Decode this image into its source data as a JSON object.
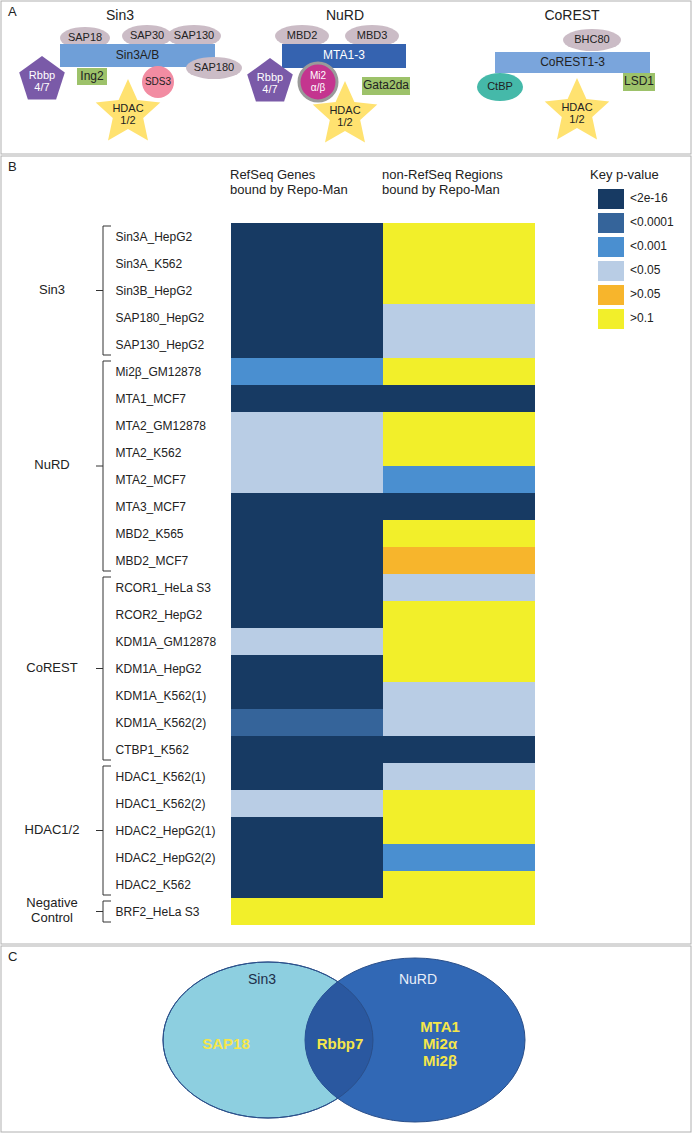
{
  "chart_data": {
    "type": "heatmap",
    "panel_label": "B",
    "columns": [
      "RefSeq Genes\nbound by Repo-Man",
      "non-RefSeq Regions\nbound by Repo-Man"
    ],
    "legend_title": "Key p-value",
    "color_key": [
      {
        "label": "<2e-16",
        "color": "#173a63"
      },
      {
        "label": "<0.0001",
        "color": "#35649a"
      },
      {
        "label": "<0.001",
        "color": "#4a8fd0"
      },
      {
        "label": "<0.05",
        "color": "#b9cde5"
      },
      {
        "label": ">0.05",
        "color": "#f7b52c"
      },
      {
        "label": ">0.1",
        "color": "#f2ef2a"
      }
    ],
    "rows": [
      {
        "label": "Sin3A_HepG2",
        "group": "Sin3",
        "cells": [
          "<2e-16",
          ">0.1"
        ]
      },
      {
        "label": "Sin3A_K562",
        "group": "Sin3",
        "cells": [
          "<2e-16",
          ">0.1"
        ]
      },
      {
        "label": "Sin3B_HepG2",
        "group": "Sin3",
        "cells": [
          "<2e-16",
          ">0.1"
        ]
      },
      {
        "label": "SAP180_HepG2",
        "group": "Sin3",
        "cells": [
          "<2e-16",
          "<0.05"
        ]
      },
      {
        "label": "SAP130_HepG2",
        "group": "Sin3",
        "cells": [
          "<2e-16",
          "<0.05"
        ]
      },
      {
        "label": "Mi2β_GM12878",
        "group": "NuRD",
        "cells": [
          "<0.001",
          ">0.1"
        ]
      },
      {
        "label": "MTA1_MCF7",
        "group": "NuRD",
        "cells": [
          "<2e-16",
          "<2e-16"
        ]
      },
      {
        "label": "MTA2_GM12878",
        "group": "NuRD",
        "cells": [
          "<0.05",
          ">0.1"
        ]
      },
      {
        "label": "MTA2_K562",
        "group": "NuRD",
        "cells": [
          "<0.05",
          ">0.1"
        ]
      },
      {
        "label": "MTA2_MCF7",
        "group": "NuRD",
        "cells": [
          "<0.05",
          "<0.001"
        ]
      },
      {
        "label": "MTA3_MCF7",
        "group": "NuRD",
        "cells": [
          "<2e-16",
          "<2e-16"
        ]
      },
      {
        "label": "MBD2_K565",
        "group": "NuRD",
        "cells": [
          "<2e-16",
          ">0.1"
        ]
      },
      {
        "label": "MBD2_MCF7",
        "group": "NuRD",
        "cells": [
          "<2e-16",
          ">0.05"
        ]
      },
      {
        "label": "RCOR1_HeLa S3",
        "group": "CoREST",
        "cells": [
          "<2e-16",
          "<0.05"
        ]
      },
      {
        "label": "RCOR2_HepG2",
        "group": "CoREST",
        "cells": [
          "<2e-16",
          ">0.1"
        ]
      },
      {
        "label": "KDM1A_GM12878",
        "group": "CoREST",
        "cells": [
          "<0.05",
          ">0.1"
        ]
      },
      {
        "label": "KDM1A_HepG2",
        "group": "CoREST",
        "cells": [
          "<2e-16",
          ">0.1"
        ]
      },
      {
        "label": "KDM1A_K562(1)",
        "group": "CoREST",
        "cells": [
          "<2e-16",
          "<0.05"
        ]
      },
      {
        "label": "KDM1A_K562(2)",
        "group": "CoREST",
        "cells": [
          "<0.0001",
          "<0.05"
        ]
      },
      {
        "label": "CTBP1_K562",
        "group": "CoREST",
        "cells": [
          "<2e-16",
          "<2e-16"
        ]
      },
      {
        "label": "HDAC1_K562(1)",
        "group": "HDAC1/2",
        "cells": [
          "<2e-16",
          "<0.05"
        ]
      },
      {
        "label": "HDAC1_K562(2)",
        "group": "HDAC1/2",
        "cells": [
          "<0.05",
          ">0.1"
        ]
      },
      {
        "label": "HDAC2_HepG2(1)",
        "group": "HDAC1/2",
        "cells": [
          "<2e-16",
          ">0.1"
        ]
      },
      {
        "label": "HDAC2_HepG2(2)",
        "group": "HDAC1/2",
        "cells": [
          "<2e-16",
          "<0.001"
        ]
      },
      {
        "label": "HDAC2_K562",
        "group": "HDAC1/2",
        "cells": [
          "<2e-16",
          ">0.1"
        ]
      },
      {
        "label": "BRF2_HeLa S3",
        "group": "Negative Control",
        "cells": [
          ">0.1",
          ">0.1"
        ]
      }
    ]
  },
  "panel_a": {
    "label": "A",
    "complexes": [
      {
        "title": "Sin3",
        "components": [
          "SAP18",
          "SAP30",
          "SAP130",
          "Sin3A/B",
          "SAP180",
          "Rbbp 4/7",
          "Ing2",
          "SDS3",
          "HDAC 1/2"
        ]
      },
      {
        "title": "NuRD",
        "components": [
          "MBD2",
          "MBD3",
          "MTA1-3",
          "Rbbp 4/7",
          "Mi2 α/β",
          "Gata2da",
          "HDAC 1/2"
        ]
      },
      {
        "title": "CoREST",
        "components": [
          "BHC80",
          "CoREST1-3",
          "CtBP",
          "LSD1",
          "HDAC 1/2"
        ]
      }
    ]
  },
  "panel_c": {
    "label": "C",
    "sets": [
      {
        "title": "Sin3",
        "only": [
          "SAP18"
        ]
      },
      {
        "title": "NuRD",
        "only": [
          "MTA1",
          "Mi2α",
          "Mi2β"
        ]
      }
    ],
    "shared": [
      "Rbbp7"
    ]
  }
}
